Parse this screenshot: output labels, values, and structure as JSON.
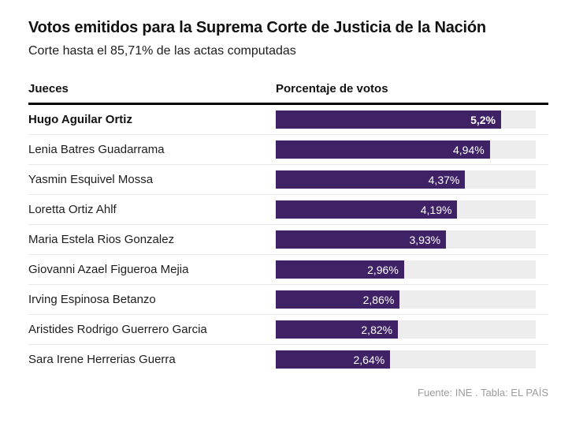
{
  "header": {
    "title": "Votos emitidos para la Suprema Corte de Justicia de la Nación",
    "subtitle": "Corte hasta el 85,71% de las actas computadas"
  },
  "table": {
    "col1_header": "Jueces",
    "col2_header": "Porcentaje de votos"
  },
  "footer": {
    "source": "Fuente: INE . Tabla: EL PAÍS"
  },
  "colors": {
    "bar_fill": "#3e2265",
    "bar_track": "#ededed",
    "text": "#1d1d1d",
    "muted": "#9c9c9c"
  },
  "chart_data": {
    "type": "bar",
    "orientation": "horizontal",
    "title": "Votos emitidos para la Suprema Corte de Justicia de la Nación",
    "subtitle": "Corte hasta el 85,71% de las actas computadas",
    "xlabel": "Porcentaje de votos",
    "ylabel": "Jueces",
    "axis_max": 6,
    "grid": false,
    "legend": false,
    "categories": [
      "Hugo Aguilar Ortiz",
      "Lenia Batres Guadarrama",
      "Yasmin Esquivel Mossa",
      "Loretta Ortiz Ahlf",
      "Maria Estela Rios Gonzalez",
      "Giovanni Azael Figueroa Mejia",
      "Irving Espinosa Betanzo",
      "Aristides Rodrigo Guerrero Garcia",
      "Sara Irene Herrerias Guerra"
    ],
    "values": [
      5.2,
      4.94,
      4.37,
      4.19,
      3.93,
      2.96,
      2.86,
      2.82,
      2.64
    ],
    "rows": [
      {
        "name": "Hugo Aguilar Ortiz",
        "value": 5.2,
        "label": "5,2%",
        "highlight": true
      },
      {
        "name": "Lenia Batres Guadarrama",
        "value": 4.94,
        "label": "4,94%",
        "highlight": false
      },
      {
        "name": "Yasmin Esquivel Mossa",
        "value": 4.37,
        "label": "4,37%",
        "highlight": false
      },
      {
        "name": "Loretta Ortiz Ahlf",
        "value": 4.19,
        "label": "4,19%",
        "highlight": false
      },
      {
        "name": "Maria Estela Rios Gonzalez",
        "value": 3.93,
        "label": "3,93%",
        "highlight": false
      },
      {
        "name": "Giovanni Azael Figueroa Mejia",
        "value": 2.96,
        "label": "2,96%",
        "highlight": false
      },
      {
        "name": "Irving Espinosa Betanzo",
        "value": 2.86,
        "label": "2,86%",
        "highlight": false
      },
      {
        "name": "Aristides Rodrigo Guerrero Garcia",
        "value": 2.82,
        "label": "2,82%",
        "highlight": false
      },
      {
        "name": "Sara Irene Herrerias Guerra",
        "value": 2.64,
        "label": "2,64%",
        "highlight": false
      }
    ]
  }
}
